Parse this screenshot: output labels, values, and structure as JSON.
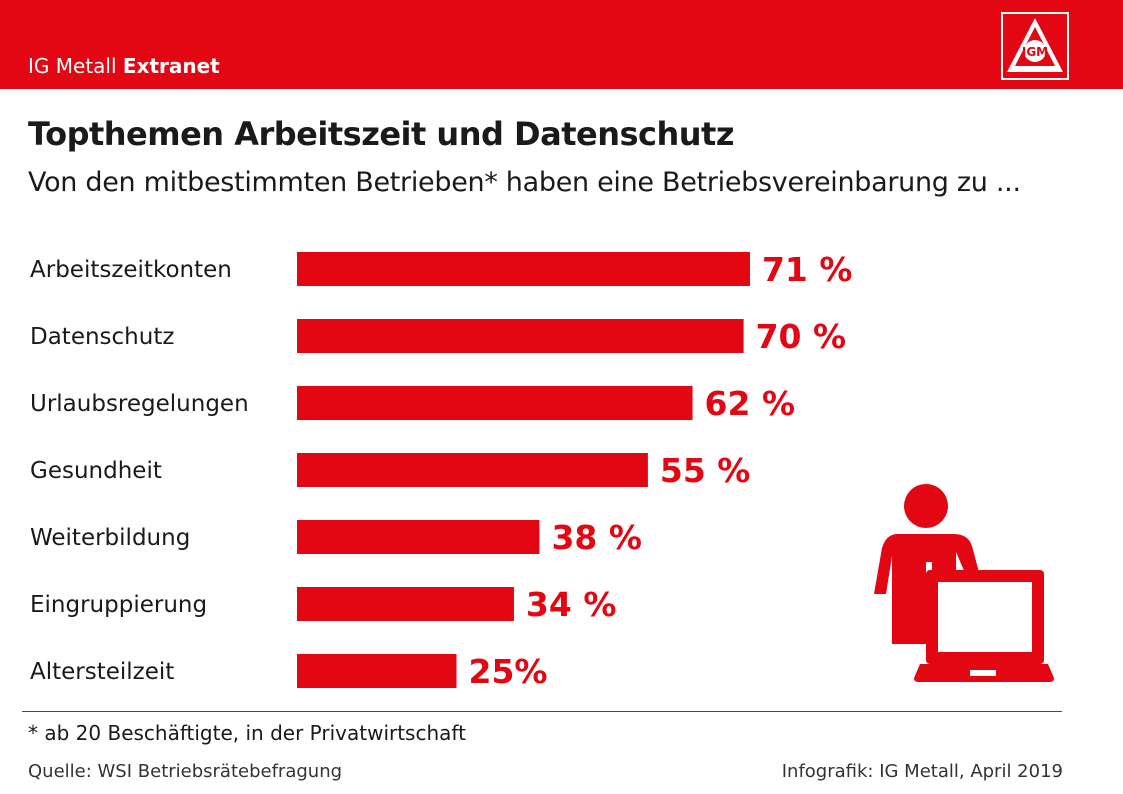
{
  "header": {
    "brand_regular": "IG Metall",
    "brand_bold": "Extranet",
    "logo_text": "IGM",
    "color": "#e30613"
  },
  "title": "Topthemen Arbeitszeit und Datenschutz",
  "subtitle": "Von den mitbestimmten Betrieben* haben eine Betriebsvereinbarung zu ...",
  "chart_data": {
    "type": "bar",
    "orientation": "horizontal",
    "categories": [
      "Arbeitszeitkonten",
      "Datenschutz",
      "Urlaubsregelungen",
      "Gesundheit",
      "Weiterbildung",
      "Eingruppierung",
      "Altersteilzeit"
    ],
    "values": [
      71,
      70,
      62,
      55,
      38,
      34,
      25
    ],
    "value_labels": [
      "71 %",
      "70 %",
      "62 %",
      "55 %",
      "38 %",
      "34 %",
      "25%"
    ],
    "unit": "%",
    "xlim": [
      0,
      100
    ],
    "grid": false,
    "legend": "none",
    "bar_color": "#e30613"
  },
  "illustration": "person-at-laptop-icon",
  "footnote": "* ab 20 Beschäftigte, in der Privatwirtschaft",
  "source": "Quelle: WSI Betriebsrätebefragung",
  "credit": "Infografik: IG Metall, April 2019"
}
